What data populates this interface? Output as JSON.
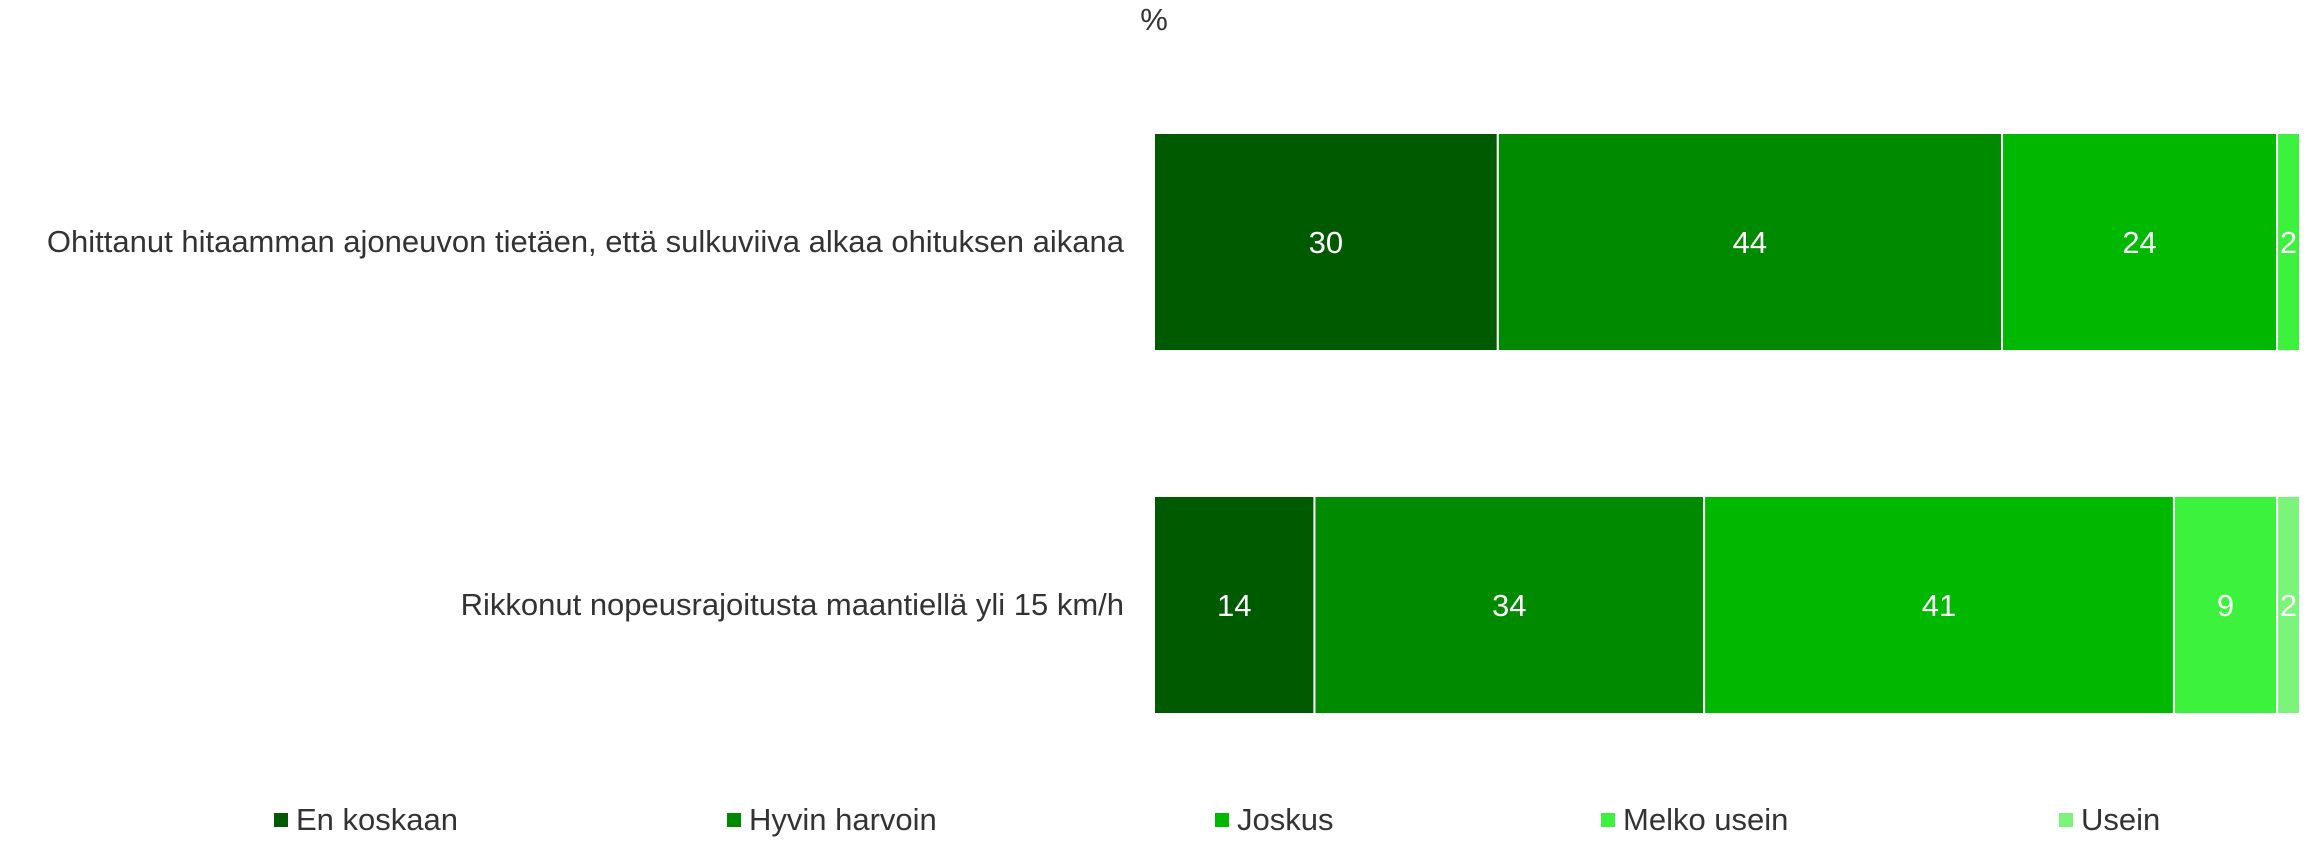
{
  "chart_data": {
    "type": "bar",
    "orientation": "horizontal",
    "stacked": true,
    "unit_label": "%",
    "xlim": [
      0,
      100
    ],
    "categories": [
      "Ohittanut hitaamman ajoneuvon tietäen, että sulkuviiva alkaa ohituksen aikana",
      "Rikkonut nopeusrajoitusta maantiellä yli 15 km/h"
    ],
    "series": [
      {
        "name": "En koskaan",
        "color": "#005a00",
        "values": [
          30,
          14
        ]
      },
      {
        "name": "Hyvin harvoin",
        "color": "#008a00",
        "values": [
          44,
          34
        ]
      },
      {
        "name": "Joskus",
        "color": "#00b800",
        "values": [
          24,
          41
        ]
      },
      {
        "name": "Melko usein",
        "color": "#3cf23c",
        "values": [
          2,
          9
        ]
      },
      {
        "name": "Usein",
        "color": "#7af57a",
        "values": [
          0,
          2
        ]
      }
    ],
    "data_labels": [
      [
        "30",
        "44",
        "24",
        "2",
        "0"
      ],
      [
        "14",
        "34",
        "41",
        "9",
        "2"
      ]
    ],
    "legend_position": "bottom",
    "grid": false
  }
}
